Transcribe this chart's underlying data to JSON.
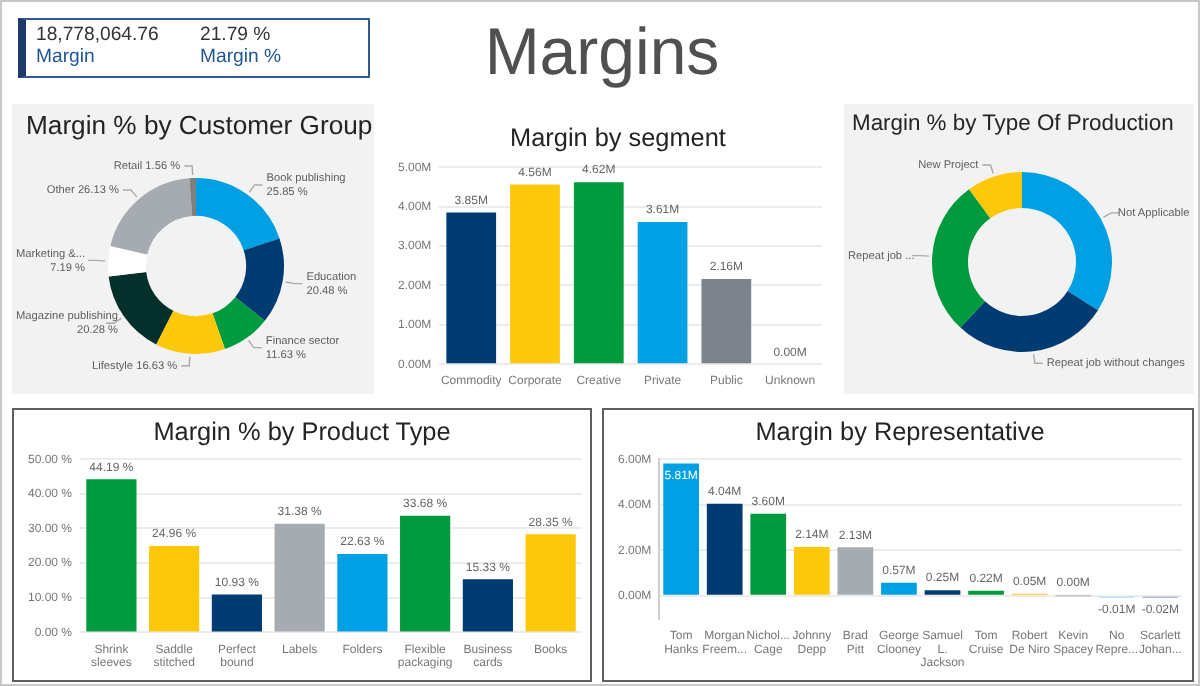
{
  "chart_data": [
    {
      "type": "other",
      "title": "Margins",
      "annotations": [
        "18,778,064.76",
        "Margin",
        "21.79 %",
        "Margin %"
      ]
    },
    {
      "type": "donut",
      "title": "Margin % by Customer Group",
      "categories": [
        "Book publishing",
        "Education",
        "Finance sector",
        "Lifestyle",
        "Magazine publishing",
        "Marketing &...",
        "Other",
        "Retail"
      ],
      "values": [
        25.85,
        20.48,
        11.63,
        16.63,
        20.28,
        7.19,
        26.13,
        1.56
      ],
      "value_labels": [
        "25.85 %",
        "20.48 %",
        "11.63 %",
        "16.63 %",
        "20.28 %",
        "7.19 %",
        "26.13 %",
        "1.56 %"
      ],
      "colors": [
        "#01a0e4",
        "#003c71",
        "#019a3e",
        "#fec80a",
        "#03302b",
        "#ffffff",
        "#a5abb0",
        "#7f7f7f"
      ]
    },
    {
      "type": "bar",
      "title": "Margin by segment",
      "categories": [
        "Commodity",
        "Corporate",
        "Creative",
        "Private",
        "Public",
        "Unknown"
      ],
      "values": [
        3.85,
        4.56,
        4.62,
        3.61,
        2.16,
        0
      ],
      "value_labels": [
        "3.85M",
        "4.56M",
        "4.62M",
        "3.61M",
        "2.16M",
        "0.00M"
      ],
      "colors": [
        "#003c71",
        "#fec80a",
        "#019a3e",
        "#01a0e4",
        "#7d838c",
        "#a5abb0"
      ],
      "ylim": [
        0,
        5
      ],
      "yticks": [
        {
          "value": 0,
          "label": "0.00M"
        },
        {
          "value": 1,
          "label": "1.00M"
        },
        {
          "value": 2,
          "label": "2.00M"
        },
        {
          "value": 3,
          "label": "3.00M"
        },
        {
          "value": 4,
          "label": "4.00M"
        },
        {
          "value": 5,
          "label": "5.00M"
        }
      ],
      "grid": "y"
    },
    {
      "type": "donut",
      "title": "Margin % by Type Of Production",
      "categories": [
        "Not Applicable",
        "Repeat job without changes",
        "Repeat job ...",
        "New Project"
      ],
      "values": [
        34,
        28,
        28,
        10
      ],
      "colors": [
        "#01a0e4",
        "#003c71",
        "#019a3e",
        "#fec80a"
      ]
    },
    {
      "type": "bar",
      "title": "Margin % by Product Type",
      "categories": [
        "Shrink sleeves",
        "Saddle stitched",
        "Perfect bound",
        "Labels",
        "Folders",
        "Flexible packaging",
        "Business cards",
        "Books"
      ],
      "values": [
        44.19,
        24.96,
        10.93,
        31.38,
        22.63,
        33.68,
        15.33,
        28.35
      ],
      "value_labels": [
        "44.19 %",
        "24.96 %",
        "10.93 %",
        "31.38 %",
        "22.63 %",
        "33.68 %",
        "15.33 %",
        "28.35 %"
      ],
      "colors": [
        "#019a3e",
        "#fec80a",
        "#003c71",
        "#a5abb0",
        "#01a0e4",
        "#019a3e",
        "#003c71",
        "#fec80a"
      ],
      "ylim": [
        0,
        50
      ],
      "yticks": [
        {
          "value": 0,
          "label": "0.00 %"
        },
        {
          "value": 10,
          "label": "10.00 %"
        },
        {
          "value": 20,
          "label": "20.00 %"
        },
        {
          "value": 30,
          "label": "30.00 %"
        },
        {
          "value": 40,
          "label": "40.00 %"
        },
        {
          "value": 50,
          "label": "50.00 %"
        }
      ],
      "grid": "y"
    },
    {
      "type": "bar",
      "title": "Margin by Representative",
      "categories": [
        "Tom Hanks",
        "Morgan Freem...",
        "Nichol... Cage",
        "Johnny Depp",
        "Brad Pitt",
        "George Clooney",
        "Samuel L. Jackson",
        "Tom Cruise",
        "Robert De Niro",
        "Kevin Spacey",
        "No Repre...",
        "Scarlett Johan..."
      ],
      "values": [
        5.81,
        4.04,
        3.6,
        2.14,
        2.13,
        0.57,
        0.25,
        0.22,
        0.05,
        0,
        -0.01,
        -0.02
      ],
      "value_labels": [
        "5.81M",
        "4.04M",
        "3.60M",
        "2.14M",
        "2.13M",
        "0.57M",
        "0.25M",
        "0.22M",
        "0.05M",
        "0.00M",
        "-0.01M",
        "-0.02M"
      ],
      "colors": [
        "#01a0e4",
        "#003c71",
        "#019a3e",
        "#fec80a",
        "#a5abb0",
        "#01a0e4",
        "#003c71",
        "#019a3e",
        "#fec80a",
        "#c9cdd1",
        "#a6d8f2",
        "#8da4bf"
      ],
      "ylim": [
        -1,
        6
      ],
      "yticks": [
        {
          "value": 0,
          "label": "0.00M"
        },
        {
          "value": 2,
          "label": "2.00M"
        },
        {
          "value": 4,
          "label": "4.00M"
        },
        {
          "value": 6,
          "label": "6.00M"
        }
      ],
      "grid": "y"
    }
  ]
}
